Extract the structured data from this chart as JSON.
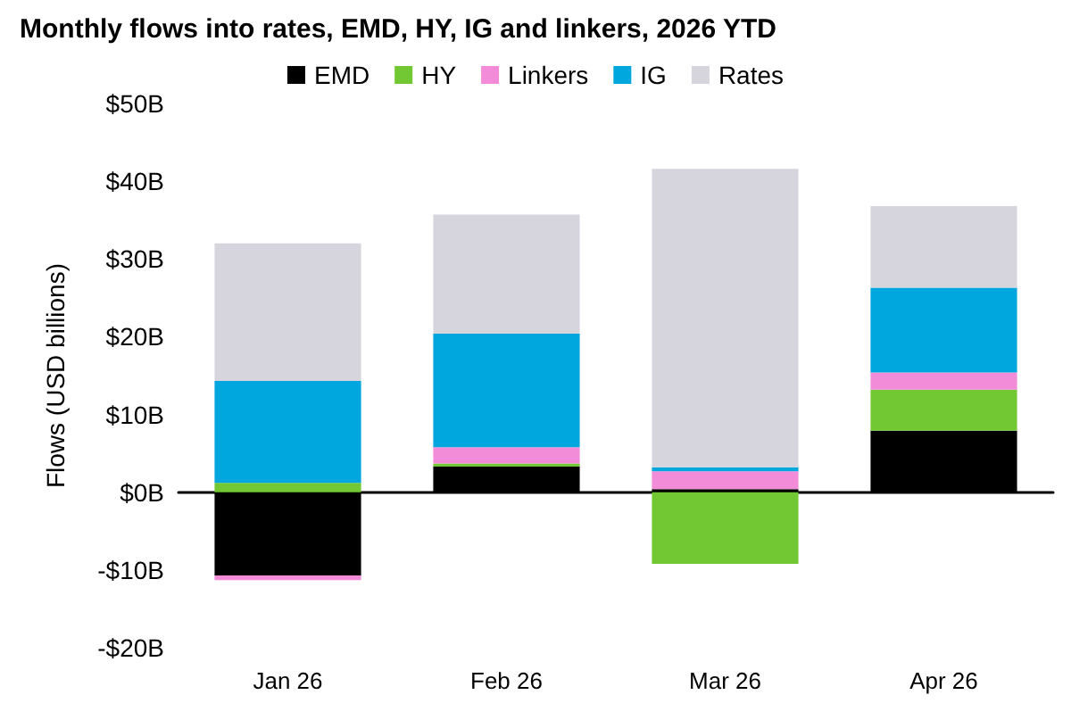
{
  "chart_data": {
    "type": "bar",
    "title": "Monthly flows into rates, EMD, HY, IG and linkers, 2026 YTD",
    "ylabel": "Flows (USD billions)",
    "categories": [
      "Jan 26",
      "Feb 26",
      "Mar 26",
      "Apr 26"
    ],
    "stacked": true,
    "series": [
      {
        "name": "EMD",
        "color": "#000000",
        "values": [
          -10.7,
          3.3,
          0.4,
          7.9
        ]
      },
      {
        "name": "HY",
        "color": "#72c832",
        "values": [
          1.2,
          0.4,
          -9.2,
          5.3
        ]
      },
      {
        "name": "Linkers",
        "color": "#f28cd8",
        "values": [
          -0.6,
          2.1,
          2.3,
          2.2
        ]
      },
      {
        "name": "IG",
        "color": "#00a6de",
        "values": [
          13.1,
          14.6,
          0.5,
          10.9
        ]
      },
      {
        "name": "Rates",
        "color": "#d6d5de",
        "values": [
          17.7,
          15.3,
          38.4,
          10.5
        ]
      }
    ],
    "ylim": [
      -20,
      50
    ],
    "yticks": [
      {
        "value": -20,
        "label": "-$20B"
      },
      {
        "value": -10,
        "label": "-$10B"
      },
      {
        "value": 0,
        "label": "$0B"
      },
      {
        "value": 10,
        "label": "$10B"
      },
      {
        "value": 20,
        "label": "$20B"
      },
      {
        "value": 30,
        "label": "$30B"
      },
      {
        "value": 40,
        "label": "$40B"
      },
      {
        "value": 50,
        "label": "$50B"
      }
    ],
    "legend": "top"
  }
}
